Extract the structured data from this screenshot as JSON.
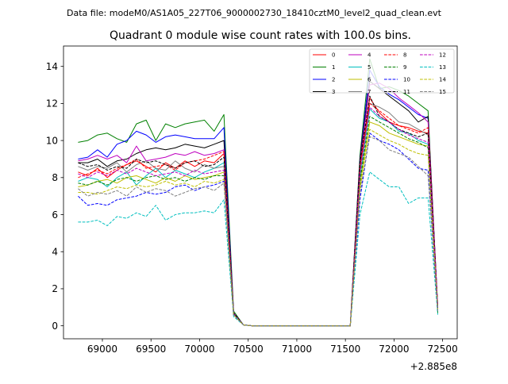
{
  "suptitle": "Data file: modeM0/AS1A05_227T06_9000002730_18410cztM0_level2_quad_clean.evt",
  "chart_data": {
    "type": "line",
    "title": "Quadrant 0 module wise count rates with 100.0s bins.",
    "xlabel": "",
    "ylabel": "",
    "x_offset_label": "+2.885e8",
    "xlim": [
      68600,
      72650
    ],
    "ylim": [
      -0.7,
      15.1
    ],
    "xticks": [
      69000,
      69500,
      70000,
      70500,
      71000,
      71500,
      72000,
      72500
    ],
    "xtick_labels": [
      "69000",
      "69500",
      "70000",
      "70500",
      "71000",
      "71500",
      "72000",
      "72500"
    ],
    "yticks": [
      0,
      2,
      4,
      6,
      8,
      10,
      12,
      14
    ],
    "ytick_labels": [
      "0",
      "2",
      "4",
      "6",
      "8",
      "10",
      "12",
      "14"
    ],
    "grid": false,
    "legend_position": "top-right",
    "legend_columns": 4,
    "x": [
      68750,
      68850,
      68950,
      69050,
      69150,
      69250,
      69350,
      69450,
      69550,
      69650,
      69750,
      69850,
      69950,
      70050,
      70150,
      70250,
      70350,
      70450,
      70550,
      70650,
      70750,
      70850,
      70950,
      71050,
      71150,
      71250,
      71350,
      71450,
      71550,
      71650,
      71750,
      71850,
      71950,
      72050,
      72150,
      72250,
      72350,
      72450
    ],
    "series": [
      {
        "name": "0",
        "color": "#ff0000",
        "dash": "solid",
        "values": [
          8.3,
          8.1,
          8.5,
          8.0,
          8.4,
          8.7,
          8.9,
          8.6,
          8.3,
          8.8,
          8.5,
          8.9,
          8.6,
          8.9,
          8.8,
          9.3,
          0.6,
          0.05,
          0,
          0,
          0,
          0,
          0,
          0,
          0,
          0,
          0,
          0,
          0,
          8.5,
          12.3,
          11.5,
          11.0,
          10.8,
          10.7,
          10.5,
          10.4,
          1.0
        ]
      },
      {
        "name": "1",
        "color": "#008000",
        "dash": "solid",
        "values": [
          9.9,
          10.0,
          10.3,
          10.4,
          10.1,
          9.9,
          10.9,
          11.1,
          10.0,
          10.9,
          10.7,
          10.9,
          11.0,
          11.1,
          10.5,
          11.4,
          0.8,
          0.05,
          0,
          0,
          0,
          0,
          0,
          0,
          0,
          0,
          0,
          0,
          0,
          9.2,
          14.4,
          12.8,
          12.9,
          12.7,
          12.4,
          12.0,
          11.6,
          0.7
        ]
      },
      {
        "name": "2",
        "color": "#0000ff",
        "dash": "solid",
        "values": [
          9.0,
          9.1,
          9.5,
          9.1,
          9.8,
          10.0,
          10.5,
          10.3,
          9.9,
          10.2,
          10.3,
          10.2,
          10.1,
          10.1,
          10.1,
          10.7,
          0.7,
          0.05,
          0,
          0,
          0,
          0,
          0,
          0,
          0,
          0,
          0,
          0,
          0,
          9.0,
          13.8,
          12.9,
          12.5,
          12.2,
          11.8,
          11.4,
          11.2,
          1.0
        ]
      },
      {
        "name": "3",
        "color": "#000000",
        "dash": "solid",
        "values": [
          8.8,
          8.8,
          9.0,
          8.6,
          8.9,
          9.0,
          9.3,
          9.5,
          9.6,
          9.5,
          9.6,
          9.8,
          9.7,
          9.6,
          9.8,
          10.0,
          0.7,
          0.05,
          0,
          0,
          0,
          0,
          0,
          0,
          0,
          0,
          0,
          0,
          0,
          9.0,
          13.2,
          12.8,
          12.4,
          12.0,
          11.6,
          11.0,
          11.3,
          1.0
        ]
      },
      {
        "name": "4",
        "color": "#bf00bf",
        "dash": "solid",
        "values": [
          8.9,
          9.0,
          9.2,
          9.0,
          9.2,
          8.8,
          9.7,
          8.9,
          9.0,
          9.1,
          9.3,
          9.2,
          9.4,
          9.2,
          9.3,
          9.5,
          0.7,
          0.05,
          0,
          0,
          0,
          0,
          0,
          0,
          0,
          0,
          0,
          0,
          0,
          8.8,
          13.0,
          13.1,
          12.8,
          12.3,
          11.9,
          11.5,
          11.0,
          1.0
        ]
      },
      {
        "name": "5",
        "color": "#00bfbf",
        "dash": "solid",
        "values": [
          7.8,
          8.0,
          7.9,
          7.5,
          8.0,
          8.3,
          7.6,
          8.1,
          8.5,
          8.0,
          8.4,
          8.2,
          8.0,
          8.3,
          8.5,
          8.8,
          0.6,
          0.05,
          0,
          0,
          0,
          0,
          0,
          0,
          0,
          0,
          0,
          0,
          0,
          8.0,
          11.7,
          11.2,
          11.0,
          10.5,
          10.4,
          10.0,
          9.8,
          0.9
        ]
      },
      {
        "name": "6",
        "color": "#bfbf00",
        "dash": "solid",
        "values": [
          7.5,
          7.6,
          7.8,
          7.9,
          7.7,
          8.0,
          8.1,
          7.9,
          7.7,
          8.0,
          7.8,
          8.1,
          7.9,
          8.0,
          8.1,
          8.3,
          0.6,
          0.05,
          0,
          0,
          0,
          0,
          0,
          0,
          0,
          0,
          0,
          0,
          0,
          7.6,
          11.0,
          10.8,
          10.4,
          10.2,
          10.0,
          9.8,
          9.7,
          0.9
        ]
      },
      {
        "name": "7",
        "color": "#7f7f7f",
        "dash": "solid",
        "values": [
          8.6,
          8.4,
          8.6,
          8.5,
          8.8,
          8.3,
          8.7,
          8.9,
          8.5,
          8.4,
          8.9,
          8.5,
          8.3,
          8.7,
          8.5,
          8.6,
          0.6,
          0.05,
          0,
          0,
          0,
          0,
          0,
          0,
          0,
          0,
          0,
          0,
          0,
          8.4,
          12.0,
          11.8,
          11.5,
          11.0,
          10.9,
          10.6,
          10.3,
          1.0
        ]
      },
      {
        "name": "8",
        "color": "#ff0000",
        "dash": "dashed",
        "values": [
          8.0,
          8.2,
          8.4,
          8.2,
          8.5,
          8.7,
          9.0,
          8.5,
          8.6,
          8.7,
          8.4,
          8.8,
          8.9,
          9.0,
          9.2,
          9.4,
          0.6,
          0.05,
          0,
          0,
          0,
          0,
          0,
          0,
          0,
          0,
          0,
          0,
          0,
          8.6,
          12.0,
          11.6,
          11.2,
          10.8,
          10.6,
          10.4,
          10.7,
          1.0
        ]
      },
      {
        "name": "9",
        "color": "#008000",
        "dash": "dashed",
        "values": [
          7.7,
          7.6,
          7.8,
          7.6,
          7.9,
          8.0,
          7.8,
          8.0,
          8.1,
          7.9,
          8.0,
          7.8,
          8.0,
          7.9,
          8.1,
          8.1,
          0.6,
          0.05,
          0,
          0,
          0,
          0,
          0,
          0,
          0,
          0,
          0,
          0,
          0,
          7.8,
          11.3,
          11.0,
          10.7,
          10.4,
          10.1,
          9.9,
          9.6,
          0.9
        ]
      },
      {
        "name": "10",
        "color": "#0000ff",
        "dash": "dashed",
        "values": [
          7.0,
          6.5,
          6.6,
          6.5,
          6.8,
          6.9,
          7.0,
          7.2,
          7.1,
          7.2,
          7.5,
          7.6,
          7.3,
          7.5,
          7.6,
          7.8,
          0.6,
          0.05,
          0,
          0,
          0,
          0,
          0,
          0,
          0,
          0,
          0,
          0,
          0,
          6.8,
          10.4,
          10.0,
          9.8,
          9.5,
          9.0,
          8.5,
          8.4,
          0.8
        ]
      },
      {
        "name": "11",
        "color": "#000000",
        "dash": "dashed",
        "values": [
          8.8,
          8.6,
          8.7,
          8.4,
          8.6,
          8.5,
          9.0,
          8.8,
          8.9,
          8.7,
          8.5,
          8.8,
          8.9,
          8.6,
          8.7,
          9.1,
          0.7,
          0.05,
          0,
          0,
          0,
          0,
          0,
          0,
          0,
          0,
          0,
          0,
          0,
          8.8,
          12.4,
          11.3,
          11.0,
          10.6,
          10.4,
          10.2,
          10.4,
          1.0
        ]
      },
      {
        "name": "12",
        "color": "#bf00bf",
        "dash": "dashed",
        "values": [
          8.2,
          8.0,
          8.3,
          8.1,
          8.4,
          8.2,
          8.5,
          8.3,
          8.1,
          8.2,
          8.3,
          8.1,
          8.4,
          8.2,
          8.3,
          8.4,
          0.6,
          0.05,
          0,
          0,
          0,
          0,
          0,
          0,
          0,
          0,
          0,
          0,
          0,
          8.2,
          11.8,
          11.3,
          11.0,
          10.6,
          10.3,
          10.1,
          9.9,
          1.0
        ]
      },
      {
        "name": "13",
        "color": "#00bfbf",
        "dash": "dashed",
        "values": [
          5.6,
          5.6,
          5.7,
          5.4,
          5.9,
          5.8,
          6.1,
          5.9,
          6.5,
          5.7,
          6.0,
          6.1,
          6.1,
          6.2,
          6.1,
          6.8,
          0.5,
          0.05,
          0,
          0,
          0,
          0,
          0,
          0,
          0,
          0,
          0,
          0,
          0,
          6.0,
          8.3,
          7.9,
          7.5,
          7.5,
          6.6,
          6.9,
          6.9,
          0.6
        ]
      },
      {
        "name": "14",
        "color": "#bfbf00",
        "dash": "dashed",
        "values": [
          7.2,
          7.2,
          7.1,
          7.3,
          7.5,
          7.4,
          7.6,
          7.5,
          7.6,
          7.8,
          7.6,
          7.7,
          7.5,
          7.8,
          7.7,
          7.9,
          0.6,
          0.05,
          0,
          0,
          0,
          0,
          0,
          0,
          0,
          0,
          0,
          0,
          0,
          7.4,
          10.6,
          10.3,
          10.0,
          9.8,
          9.5,
          9.3,
          9.2,
          0.9
        ]
      },
      {
        "name": "15",
        "color": "#7f7f7f",
        "dash": "dashed",
        "values": [
          7.4,
          7.0,
          7.2,
          7.1,
          7.3,
          7.0,
          7.5,
          7.2,
          7.4,
          7.3,
          7.0,
          7.2,
          7.4,
          7.5,
          7.3,
          7.7,
          0.6,
          0.05,
          0,
          0,
          0,
          0,
          0,
          0,
          0,
          0,
          0,
          0,
          0,
          7.2,
          10.2,
          10.0,
          9.5,
          9.3,
          9.1,
          8.6,
          8.1,
          0.8
        ]
      }
    ]
  }
}
